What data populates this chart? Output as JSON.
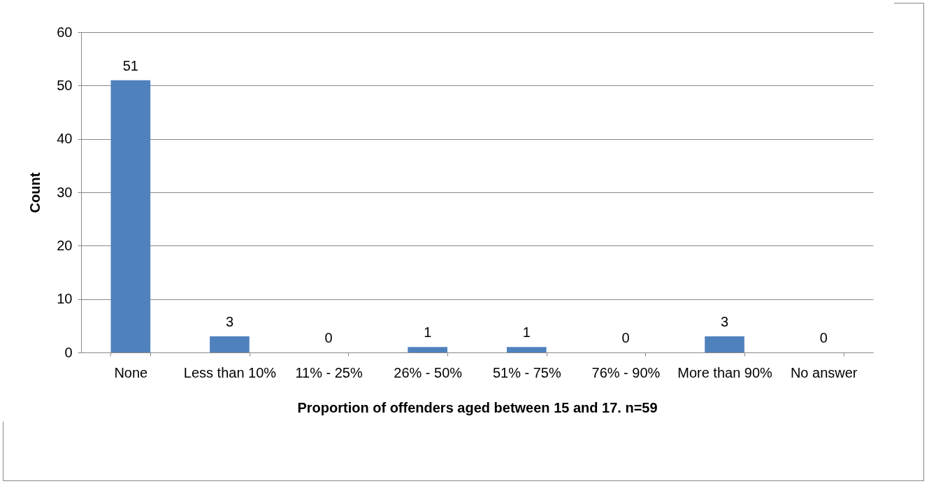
{
  "chart_data": {
    "type": "bar",
    "xlabel": "Proportion of offenders aged between 15 and 17. n=59",
    "ylabel": "Count",
    "categories": [
      "None",
      "Less than 10%",
      "11% - 25%",
      "26% - 50%",
      "51% - 75%",
      "76% - 90%",
      "More than 90%",
      "No answer"
    ],
    "values": [
      51,
      3,
      0,
      1,
      1,
      0,
      3,
      0
    ],
    "color": "#4f81bd",
    "ylim": [
      0,
      60
    ],
    "yticks": [
      0,
      10,
      20,
      30,
      40,
      50,
      60
    ],
    "grid": "y",
    "data_labels": true
  }
}
